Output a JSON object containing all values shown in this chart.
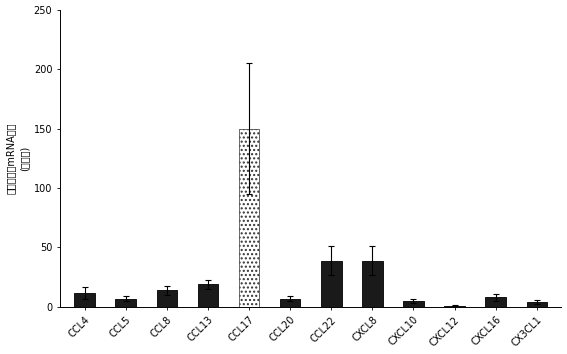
{
  "categories": [
    "CCL4",
    "CCL5",
    "CCL8",
    "CCL13",
    "CCL17",
    "CCL20",
    "CCL22",
    "CXCL8",
    "CXCL10",
    "CXCL12",
    "CXCL16",
    "CX3CL1"
  ],
  "values": [
    12,
    7,
    14,
    19,
    150,
    7,
    39,
    39,
    5,
    1,
    8,
    4
  ],
  "errors": [
    5,
    2,
    4,
    4,
    55,
    2,
    12,
    12,
    2,
    0.5,
    3,
    1.5
  ],
  "bar_color_dark": "#1a1a1a",
  "hatch_index": 4,
  "hatch_pattern": "....",
  "hatch_bar_facecolor": "#ffffff",
  "hatch_bar_edgecolor": "#333333",
  "ylabel_line1": "ケモカインmRNA発現",
  "ylabel_line2": "(比較比)",
  "ylim": [
    0,
    250
  ],
  "yticks": [
    0,
    50,
    100,
    150,
    200,
    250
  ],
  "background_color": "#ffffff",
  "bar_width": 0.5,
  "figsize": [
    5.67,
    3.54
  ],
  "dpi": 100,
  "tick_labelsize": 7,
  "ylabel_fontsize": 7,
  "xlabel_fontsize": 7
}
